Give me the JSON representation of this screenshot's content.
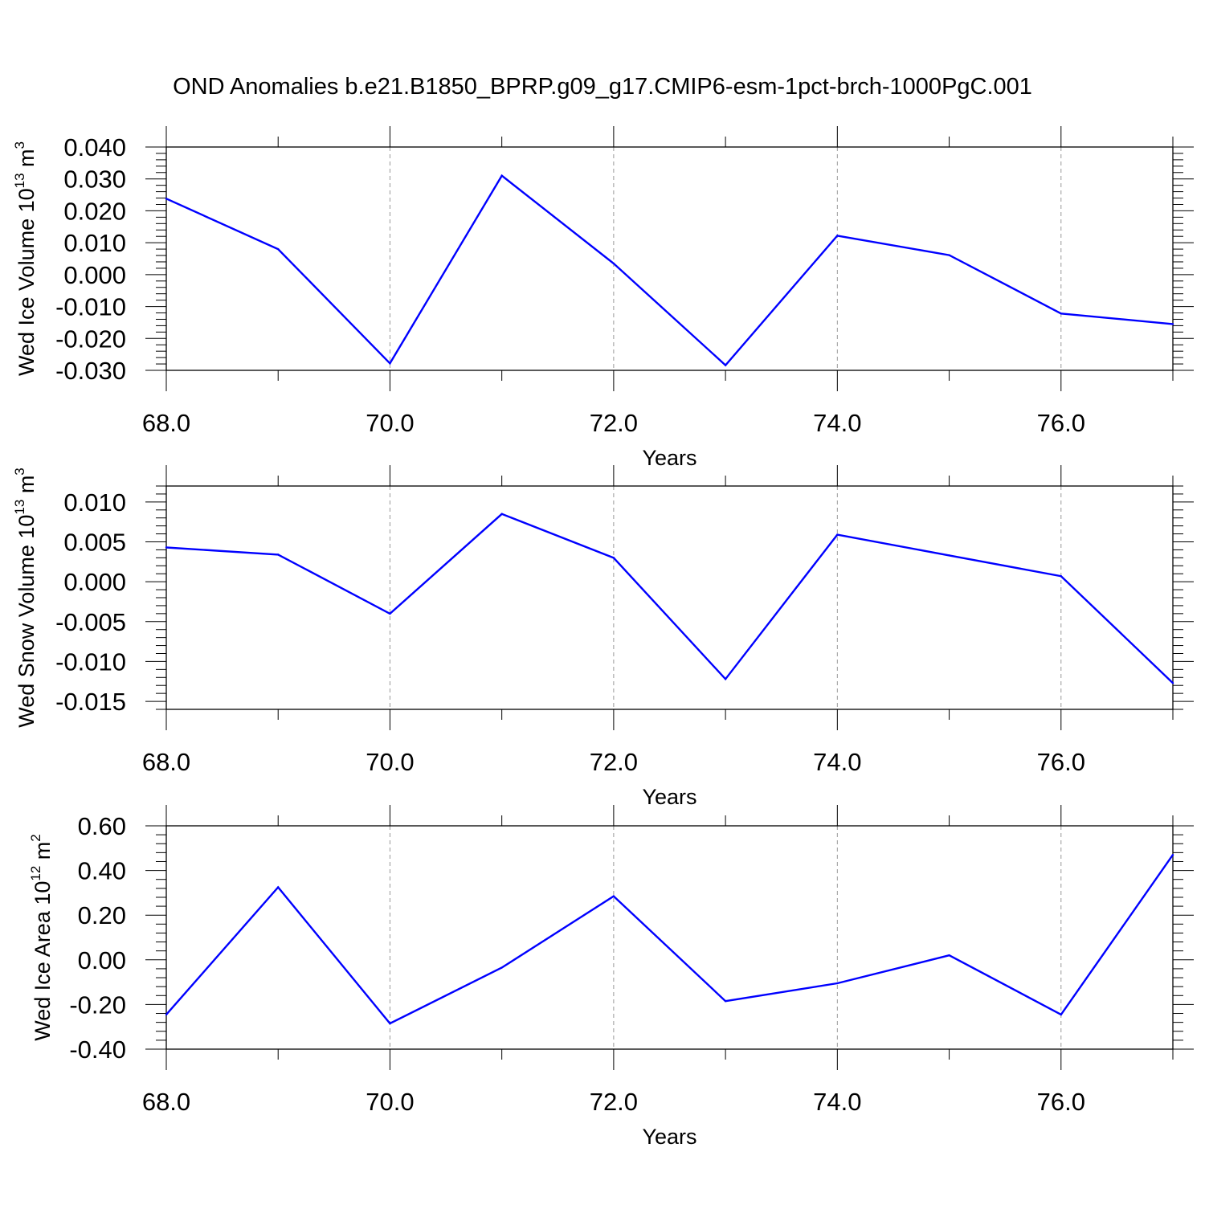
{
  "title": "OND Anomalies b.e21.B1850_BPRP.g09_g17.CMIP6-esm-1pct-brch-1000PgC.001",
  "line_color": "#0000ff",
  "chart_data": [
    {
      "type": "line",
      "ylabel": "Wed Ice Volume 10",
      "ylabel_sup": "13",
      "ylabel_unit": " m",
      "ylabel_unit_sup": "3",
      "xlabel": "Years",
      "xlim": [
        68,
        77
      ],
      "ylim": [
        -0.03,
        0.04
      ],
      "x_ticks": [
        68,
        70,
        72,
        74,
        76
      ],
      "x_tick_labels": [
        "68.0",
        "70.0",
        "72.0",
        "74.0",
        "76.0"
      ],
      "y_ticks": [
        -0.03,
        -0.02,
        -0.01,
        0.0,
        0.01,
        0.02,
        0.03,
        0.04
      ],
      "y_tick_labels": [
        "-0.030",
        "-0.020",
        "-0.010",
        "0.000",
        "0.010",
        "0.020",
        "0.030",
        "0.040"
      ],
      "series": [
        {
          "x": [
            68,
            69,
            70,
            71,
            72,
            73,
            74,
            75,
            76,
            77
          ],
          "values": [
            0.0238,
            0.008,
            -0.0278,
            0.031,
            0.0035,
            -0.0284,
            0.0122,
            0.0061,
            -0.0122,
            -0.0155
          ]
        }
      ]
    },
    {
      "type": "line",
      "ylabel": "Wed Snow Volume 10",
      "ylabel_sup": "13",
      "ylabel_unit": " m",
      "ylabel_unit_sup": "3",
      "xlabel": "Years",
      "xlim": [
        68,
        77
      ],
      "ylim": [
        -0.016,
        0.012
      ],
      "x_ticks": [
        68,
        70,
        72,
        74,
        76
      ],
      "x_tick_labels": [
        "68.0",
        "70.0",
        "72.0",
        "74.0",
        "76.0"
      ],
      "y_ticks": [
        -0.015,
        -0.01,
        -0.005,
        0.0,
        0.005,
        0.01
      ],
      "y_tick_labels": [
        "-0.015",
        "-0.010",
        "-0.005",
        "0.000",
        "0.005",
        "0.010"
      ],
      "series": [
        {
          "x": [
            68,
            69,
            70,
            71,
            72,
            73,
            74,
            75,
            76,
            77
          ],
          "values": [
            0.0043,
            0.0034,
            -0.004,
            0.0085,
            0.003,
            -0.0122,
            0.0059,
            0.0033,
            0.0007,
            -0.0127
          ]
        }
      ]
    },
    {
      "type": "line",
      "ylabel": "Wed Ice Area 10",
      "ylabel_sup": "12",
      "ylabel_unit": " m",
      "ylabel_unit_sup": "2",
      "xlabel": "Years",
      "xlim": [
        68,
        77
      ],
      "ylim": [
        -0.4,
        0.6
      ],
      "x_ticks": [
        68,
        70,
        72,
        74,
        76
      ],
      "x_tick_labels": [
        "68.0",
        "70.0",
        "72.0",
        "74.0",
        "76.0"
      ],
      "y_ticks": [
        -0.4,
        -0.2,
        0.0,
        0.2,
        0.4,
        0.6
      ],
      "y_tick_labels": [
        "-0.40",
        "-0.20",
        "0.00",
        "0.20",
        "0.40",
        "0.60"
      ],
      "series": [
        {
          "x": [
            68,
            69,
            70,
            71,
            72,
            73,
            74,
            75,
            76,
            77
          ],
          "values": [
            -0.245,
            0.325,
            -0.285,
            -0.035,
            0.285,
            -0.185,
            -0.105,
            0.02,
            -0.245,
            0.47
          ]
        }
      ]
    }
  ]
}
